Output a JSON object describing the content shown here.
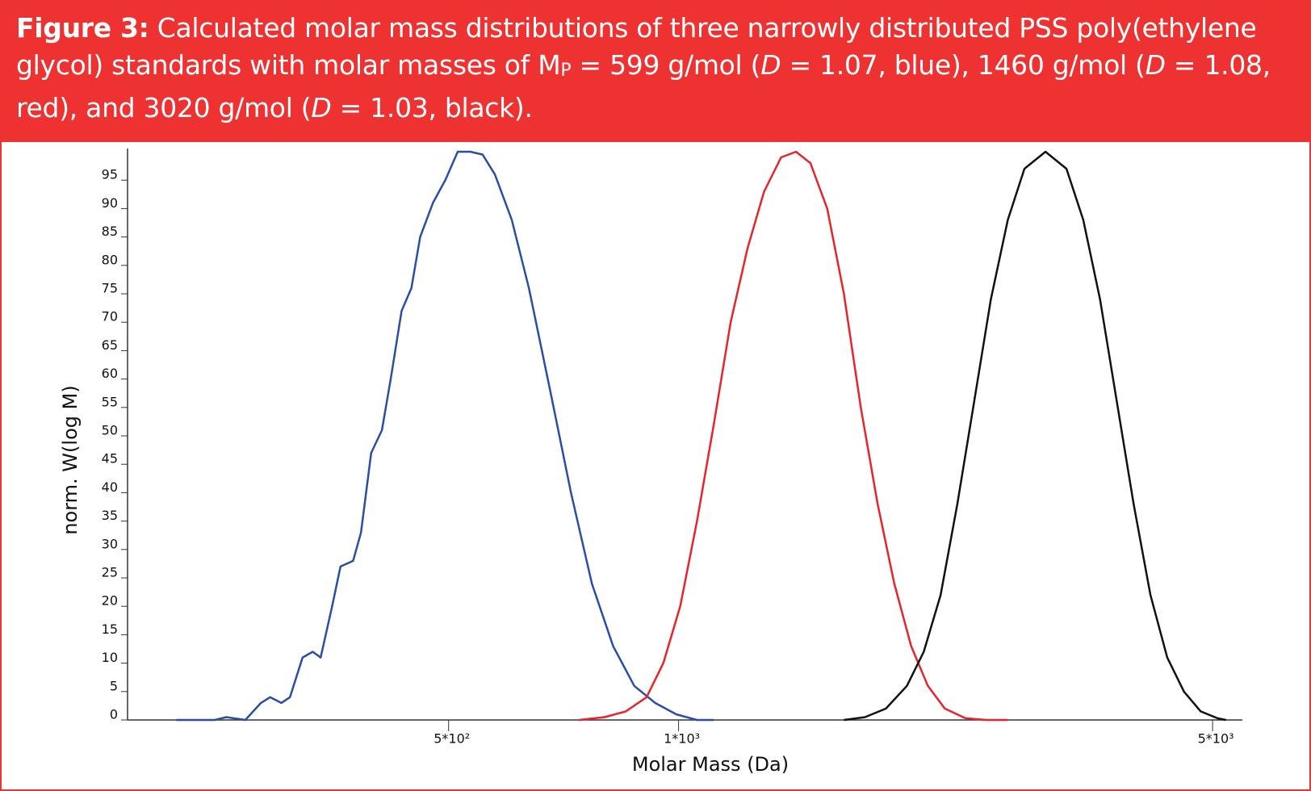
{
  "caption": {
    "parts": [
      "Figure 3:",
      " Calculated molar mass distributions of three narrowly distributed PSS poly(ethylene glycol) standards with molar masses of M",
      "P",
      " = 599 g/mol (",
      "D",
      " = 1.07, blue), 1460 g/mol (",
      "D",
      " = 1.08, red), and 3020 g/mol (",
      "D",
      " = 1.03, black)."
    ]
  },
  "chart_data": {
    "type": "line",
    "x_label": "Molar Mass (Da)",
    "y_label": "norm. W(log M)",
    "x_log": true,
    "xlim": [
      190,
      5470
    ],
    "xticks": [
      {
        "value": 500,
        "label": "5*10²"
      },
      {
        "value": 1000,
        "label": "1*10³"
      },
      {
        "value": 5000,
        "label": "5*10³"
      }
    ],
    "ylim": [
      0,
      100
    ],
    "yticks": [
      0,
      5,
      10,
      15,
      20,
      25,
      30,
      35,
      40,
      45,
      50,
      55,
      60,
      65,
      70,
      75,
      80,
      85,
      90,
      95
    ],
    "series": [
      {
        "color": "#2a4ea6",
        "x": [
          220,
          247,
          256,
          271,
          284,
          292,
          302,
          310,
          322,
          332,
          340,
          352,
          361,
          375,
          384,
          396,
          409,
          420,
          434,
          447,
          459,
          477,
          495,
          514,
          534,
          554,
          575,
          605,
          637,
          679,
          723,
          770,
          821,
          875,
          932,
          993,
          1057,
          1112
        ],
        "values": [
          0,
          0,
          0.5,
          0,
          3,
          4,
          3,
          4,
          11,
          12,
          11,
          20,
          27,
          28,
          33,
          47,
          51,
          60,
          72,
          76,
          85,
          91,
          95,
          100,
          100,
          99.5,
          96,
          88,
          76,
          58,
          40,
          24,
          13,
          6,
          3,
          1,
          0,
          0
        ]
      },
      {
        "color": "#e8242a",
        "x": [
          741,
          800,
          853,
          908,
          955,
          1005,
          1057,
          1112,
          1170,
          1231,
          1294,
          1362,
          1425,
          1488,
          1565,
          1646,
          1732,
          1822,
          1916,
          2016,
          2120,
          2231,
          2375,
          2531,
          2697
        ],
        "values": [
          0,
          0.5,
          1.5,
          4,
          10,
          20,
          35,
          52,
          70,
          83,
          93,
          99,
          100,
          98,
          90,
          75,
          55,
          38,
          24,
          13,
          6,
          2,
          0.3,
          0,
          0
        ]
      },
      {
        "color": "#111111",
        "x": [
          1646,
          1754,
          1868,
          1990,
          2094,
          2203,
          2317,
          2437,
          2563,
          2697,
          2836,
          3022,
          3219,
          3386,
          3562,
          3747,
          3941,
          4146,
          4361,
          4587,
          4825,
          5076,
          5206
        ],
        "values": [
          0,
          0.5,
          2,
          6,
          12,
          22,
          38,
          56,
          74,
          88,
          97,
          100,
          97,
          88,
          74,
          56,
          38,
          22,
          11,
          5,
          1.5,
          0.3,
          0
        ]
      }
    ]
  }
}
